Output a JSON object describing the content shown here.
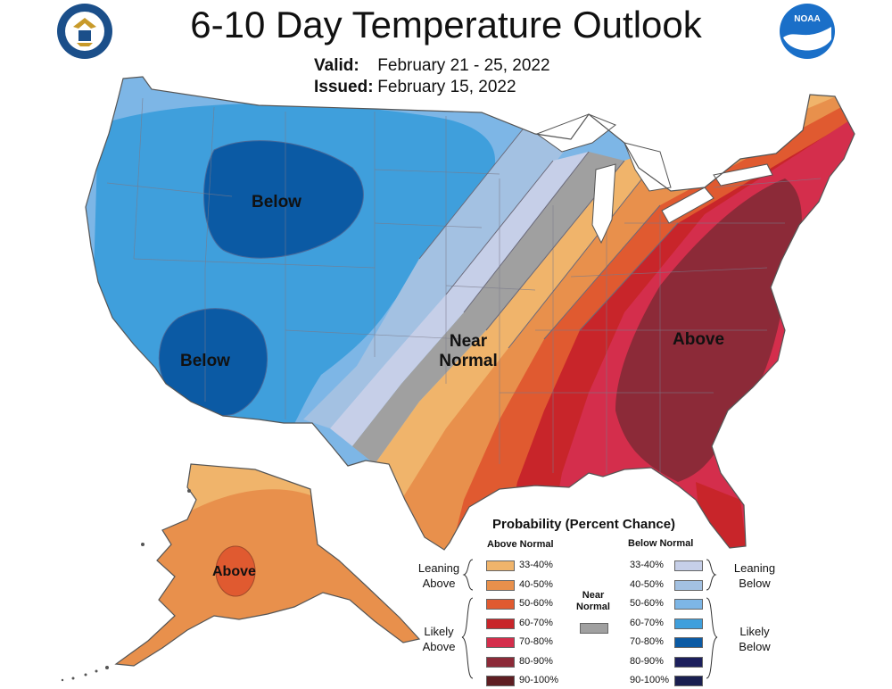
{
  "title": "6-10 Day Temperature Outlook",
  "valid_label": "Valid:",
  "valid_dates": "February 21 - 25, 2022",
  "issued_label": "Issued:",
  "issued_date": "February 15, 2022",
  "logos": {
    "left": "Department of Commerce seal",
    "left_ring_text": "DEPARTMENT OF COMMERCE · UNITED STATES OF AMERICA",
    "right": "NOAA",
    "right_text": "NOAA"
  },
  "regions": {
    "below_north": "Below",
    "below_south": "Below",
    "near_normal_line1": "Near",
    "near_normal_line2": "Normal",
    "above_east": "Above",
    "above_alaska": "Above"
  },
  "legend": {
    "title": "Probability (Percent Chance)",
    "above_header": "Above Normal",
    "below_header": "Below Normal",
    "near_line1": "Near",
    "near_line2": "Normal",
    "near_color": "#a0a0a0",
    "leaning_above_1": "Leaning",
    "leaning_above_2": "Above",
    "likely_above_1": "Likely",
    "likely_above_2": "Above",
    "leaning_below_1": "Leaning",
    "leaning_below_2": "Below",
    "likely_below_1": "Likely",
    "likely_below_2": "Below",
    "above": [
      {
        "range": "33-40%",
        "color": "#f0b46b"
      },
      {
        "range": "40-50%",
        "color": "#e8904c"
      },
      {
        "range": "50-60%",
        "color": "#e05a30"
      },
      {
        "range": "60-70%",
        "color": "#c8252a"
      },
      {
        "range": "70-80%",
        "color": "#d42e4c"
      },
      {
        "range": "80-90%",
        "color": "#8c2a38"
      },
      {
        "range": "90-100%",
        "color": "#5e1e22"
      }
    ],
    "below": [
      {
        "range": "33-40%",
        "color": "#c6cfe8"
      },
      {
        "range": "40-50%",
        "color": "#a3c1e2"
      },
      {
        "range": "50-60%",
        "color": "#7db6e6"
      },
      {
        "range": "60-70%",
        "color": "#3f9fdc"
      },
      {
        "range": "70-80%",
        "color": "#0b5aa4"
      },
      {
        "range": "80-90%",
        "color": "#1c1f5c"
      },
      {
        "range": "90-100%",
        "color": "#1a1f50"
      }
    ]
  }
}
